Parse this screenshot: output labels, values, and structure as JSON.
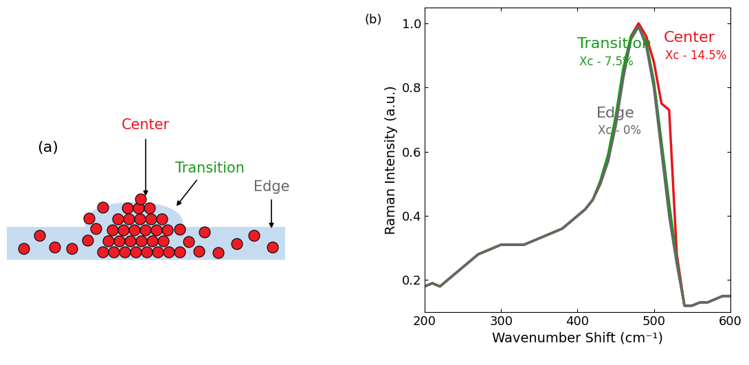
{
  "diagram": {
    "label": "(a)",
    "regions": [
      {
        "label": "Center",
        "color": "#e8141b"
      },
      {
        "label": "Transition",
        "color": "#1a9a1a"
      },
      {
        "label": "Edge",
        "color": "#666666"
      }
    ]
  },
  "chart_data": {
    "type": "line",
    "panel_label": "(b)",
    "x_label": "Wavenumber Shift (cm⁻¹)",
    "y_label": "Raman Intensity (a.u.)",
    "x": [
      200,
      210,
      220,
      230,
      240,
      250,
      260,
      270,
      280,
      290,
      300,
      310,
      320,
      330,
      340,
      350,
      360,
      370,
      380,
      390,
      400,
      410,
      420,
      430,
      440,
      450,
      460,
      470,
      480,
      490,
      500,
      510,
      520,
      530,
      540,
      550,
      560,
      570,
      580,
      590,
      600
    ],
    "series": [
      {
        "name": "Center",
        "color": "#e8141b",
        "note": "Xc - 14.5%",
        "values": [
          0.18,
          0.19,
          0.18,
          0.2,
          0.22,
          0.24,
          0.26,
          0.28,
          0.29,
          0.3,
          0.31,
          0.31,
          0.31,
          0.31,
          0.32,
          0.33,
          0.34,
          0.35,
          0.36,
          0.38,
          0.4,
          0.42,
          0.45,
          0.5,
          0.57,
          0.69,
          0.84,
          0.96,
          1.0,
          0.96,
          0.88,
          0.75,
          0.73,
          0.28,
          0.12,
          0.12,
          0.13,
          0.13,
          0.14,
          0.15,
          0.15
        ]
      },
      {
        "name": "Transition",
        "color": "#1a9a1a",
        "note": "Xc - 7.5%",
        "values": [
          0.18,
          0.19,
          0.18,
          0.2,
          0.22,
          0.24,
          0.26,
          0.28,
          0.29,
          0.3,
          0.31,
          0.31,
          0.31,
          0.31,
          0.32,
          0.33,
          0.34,
          0.35,
          0.36,
          0.38,
          0.4,
          0.42,
          0.45,
          0.51,
          0.59,
          0.71,
          0.86,
          0.96,
          0.99,
          0.94,
          0.82,
          0.63,
          0.44,
          0.26,
          0.12,
          0.12,
          0.13,
          0.13,
          0.14,
          0.15,
          0.15
        ]
      },
      {
        "name": "Edge",
        "color": "#666666",
        "note": "Xc - 0%",
        "values": [
          0.18,
          0.19,
          0.18,
          0.2,
          0.22,
          0.24,
          0.26,
          0.28,
          0.29,
          0.3,
          0.31,
          0.31,
          0.31,
          0.31,
          0.32,
          0.33,
          0.34,
          0.35,
          0.36,
          0.38,
          0.4,
          0.42,
          0.45,
          0.5,
          0.57,
          0.68,
          0.83,
          0.95,
          0.99,
          0.93,
          0.8,
          0.6,
          0.4,
          0.25,
          0.12,
          0.12,
          0.13,
          0.13,
          0.14,
          0.15,
          0.15
        ]
      }
    ],
    "xlim": [
      200,
      600
    ],
    "xticks": [
      200,
      300,
      400,
      500,
      600
    ],
    "ylim": [
      0.1,
      1.05
    ],
    "yticks": [
      {
        "value": 0.2,
        "label": "0.2"
      },
      {
        "value": 0.4,
        "label": "0.4"
      },
      {
        "value": 0.6,
        "label": "0.6"
      },
      {
        "value": 0.8,
        "label": "0.8"
      },
      {
        "value": 1.0,
        "label": "1.0"
      }
    ]
  }
}
